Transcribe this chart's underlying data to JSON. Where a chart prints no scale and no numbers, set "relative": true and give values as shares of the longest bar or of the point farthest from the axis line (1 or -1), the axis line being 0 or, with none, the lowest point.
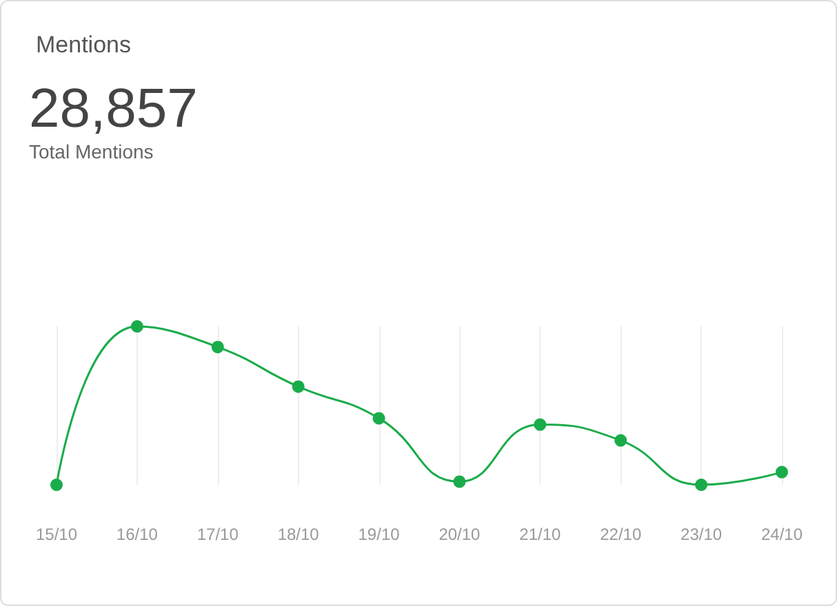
{
  "chart_data": {
    "type": "line",
    "title": "Mentions",
    "annotations": [
      "28,857",
      "Total Mentions"
    ],
    "categories": [
      "15/10",
      "16/10",
      "17/10",
      "18/10",
      "19/10",
      "20/10",
      "21/10",
      "22/10",
      "23/10",
      "24/10"
    ],
    "series": [
      {
        "color": "#1aac4a",
        "values": [
          0,
          1,
          0.87,
          0.62,
          0.42,
          0.02,
          0.38,
          0.28,
          0,
          0.08
        ]
      }
    ],
    "relative": true,
    "grid": "x",
    "marker": "circle",
    "line_style": "solid"
  }
}
